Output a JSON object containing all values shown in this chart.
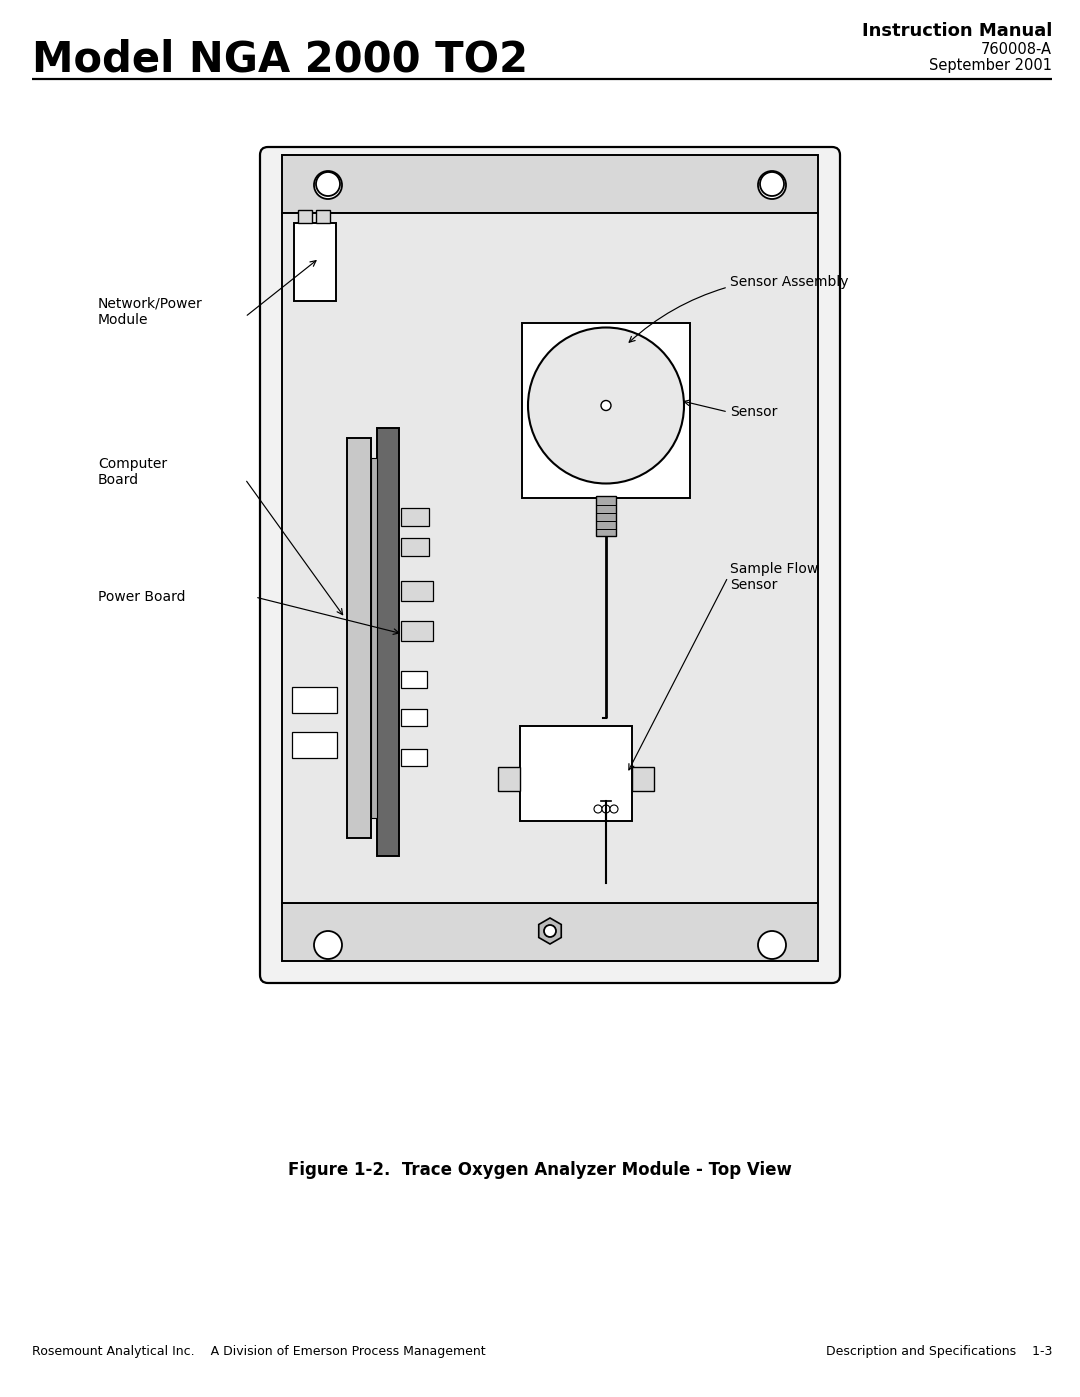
{
  "title_left": "Model NGA 2000 TO2",
  "title_right_line1": "Instruction Manual",
  "title_right_line2": "760008-A",
  "title_right_line3": "September 2001",
  "footer_left": "Rosemount Analytical Inc.    A Division of Emerson Process Management",
  "footer_right": "Description and Specifications    1-3",
  "figure_caption": "Figure 1-2.  Trace Oxygen Analyzer Module - Top View",
  "bg_color": "#ffffff",
  "lc": "#000000",
  "fill_outer": "#f2f2f2",
  "fill_inner": "#e8e8e8",
  "fill_white": "#ffffff",
  "fill_lgray": "#c8c8c8",
  "fill_dgray": "#686868",
  "fill_mgray": "#d8d8d8"
}
